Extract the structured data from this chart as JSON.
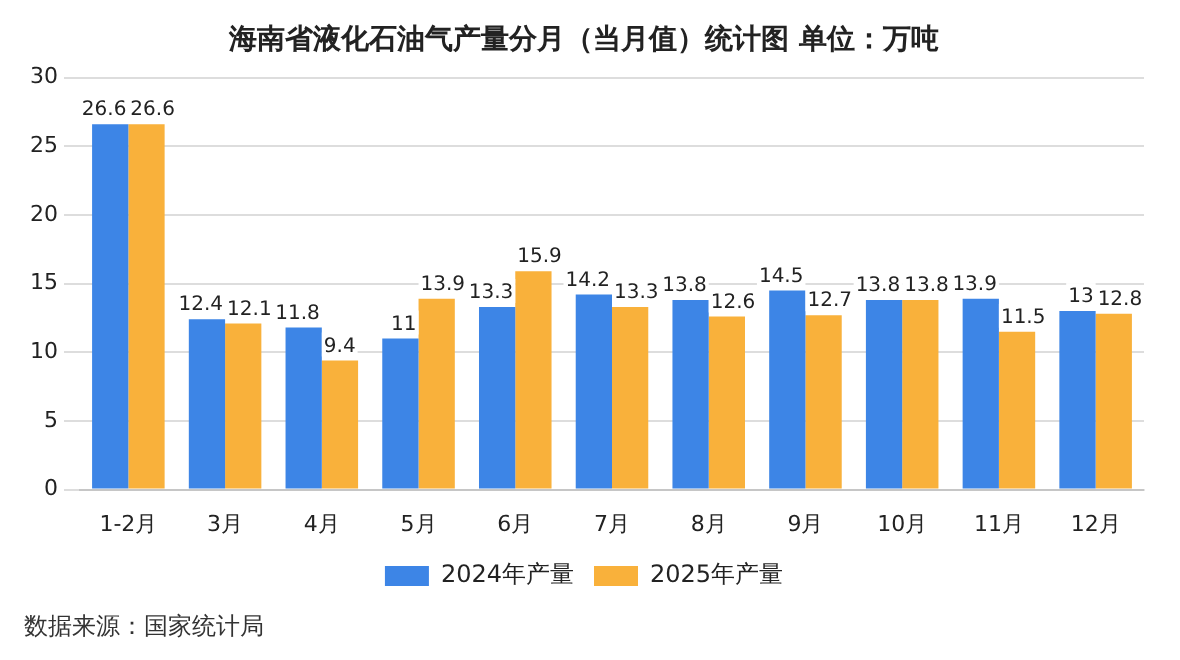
{
  "chart_data": {
    "type": "bar",
    "title": "海南省液化石油气产量分月（当月值）统计图 单位：万吨",
    "categories": [
      "1-2月",
      "3月",
      "4月",
      "5月",
      "6月",
      "7月",
      "8月",
      "9月",
      "10月",
      "11月",
      "12月"
    ],
    "series": [
      {
        "name": "2024年产量",
        "color": "#3d85e6",
        "values": [
          26.6,
          12.4,
          11.8,
          11,
          13.3,
          14.2,
          13.8,
          14.5,
          13.8,
          13.9,
          13
        ]
      },
      {
        "name": "2025年产量",
        "color": "#f9b13b",
        "values": [
          26.6,
          12.1,
          9.4,
          13.9,
          15.9,
          13.3,
          12.6,
          12.7,
          13.8,
          11.5,
          12.8
        ]
      }
    ],
    "ylim": [
      0,
      30
    ],
    "yticks": [
      0,
      5,
      10,
      15,
      20,
      25,
      30
    ],
    "grid": "y",
    "legend": "bottom",
    "data_labels": true,
    "annotations": [
      "数据来源：国家统计局"
    ]
  }
}
